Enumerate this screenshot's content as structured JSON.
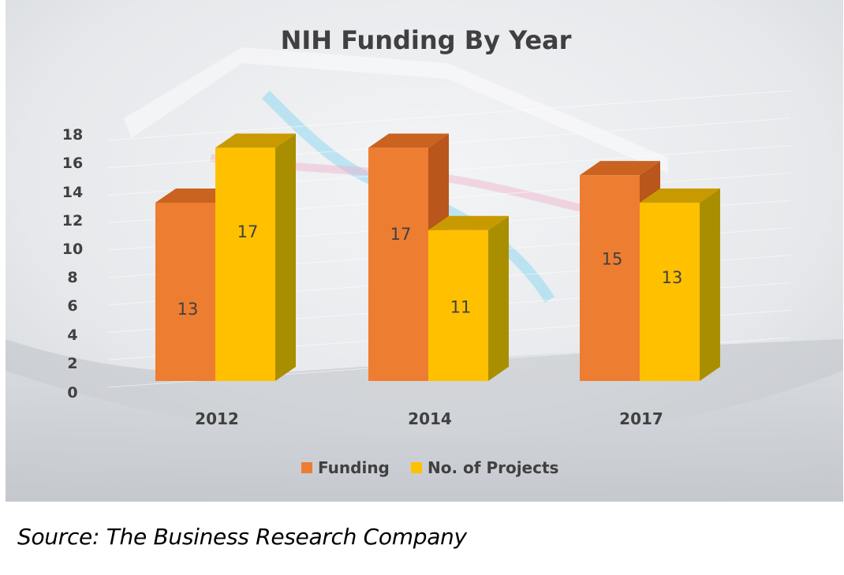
{
  "chart_data": {
    "type": "bar",
    "title": "NIH Funding By Year",
    "categories": [
      "2012",
      "2014",
      "2017"
    ],
    "series": [
      {
        "name": "Funding",
        "values": [
          13,
          17,
          15
        ]
      },
      {
        "name": "No. of Projects",
        "values": [
          17,
          11,
          13
        ]
      }
    ],
    "y_ticks": [
      "0",
      "2",
      "4",
      "6",
      "8",
      "10",
      "12",
      "14",
      "16",
      "18"
    ],
    "ylim": [
      0,
      18
    ],
    "data_labels": true,
    "grid": true,
    "legend_position": "bottom",
    "three_d": true
  },
  "colors": {
    "funding": "#ED7D31",
    "funding_side": "#B8561B",
    "funding_top": "#C9631F",
    "projects": "#FFC000",
    "projects_side": "#A98F00",
    "projects_top": "#C99A00",
    "title": "#404040",
    "axis_text": "#404040"
  },
  "source": "Source: The Business Research Company"
}
